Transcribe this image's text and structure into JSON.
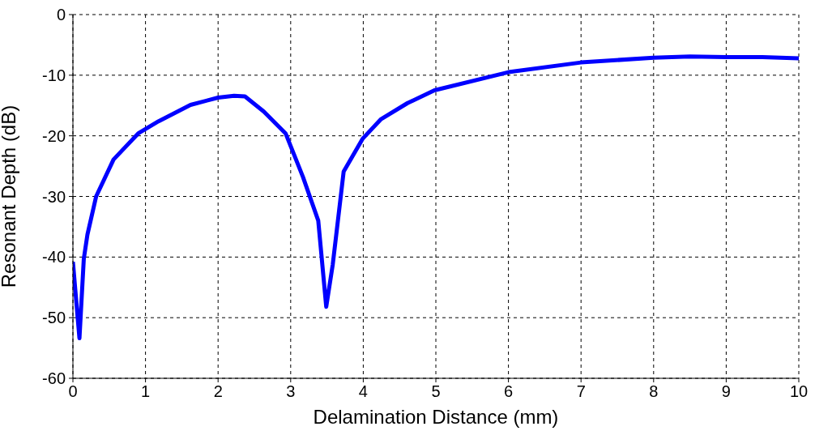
{
  "chart_data": {
    "type": "line",
    "xlabel": "Delamination Distance (mm)",
    "ylabel": "Resonant Depth (dB)",
    "xlim": [
      0,
      10
    ],
    "xticks": [
      0,
      1,
      2,
      3,
      4,
      5,
      6,
      7,
      8,
      9,
      10
    ],
    "ylim": [
      -60,
      0
    ],
    "yticks": [
      -60,
      -50,
      -40,
      -30,
      -20,
      -10,
      0
    ],
    "grid": true,
    "marker": "none",
    "line_style": "solid",
    "series": [
      {
        "color": "#0000ff",
        "x": [
          0,
          0.09,
          0.15,
          0.2,
          0.32,
          0.56,
          0.9,
          1.18,
          1.62,
          2.0,
          2.22,
          2.37,
          2.63,
          2.93,
          3.17,
          3.38,
          3.49,
          3.58,
          3.73,
          3.99,
          4.24,
          4.61,
          4.98,
          6,
          7,
          8,
          8.5,
          9,
          9.5,
          10
        ],
        "values": [
          -40.8,
          -53.4,
          -40.3,
          -36.3,
          -30,
          -23.9,
          -19.6,
          -17.6,
          -14.9,
          -13.7,
          -13.4,
          -13.5,
          -16,
          -19.6,
          -26.8,
          -34,
          -48.2,
          -41.2,
          -25.9,
          -20.5,
          -17.3,
          -14.6,
          -12.5,
          -9.5,
          -7.9,
          -7.1,
          -6.9,
          -7.0,
          -7.0,
          -7.2
        ]
      }
    ]
  }
}
